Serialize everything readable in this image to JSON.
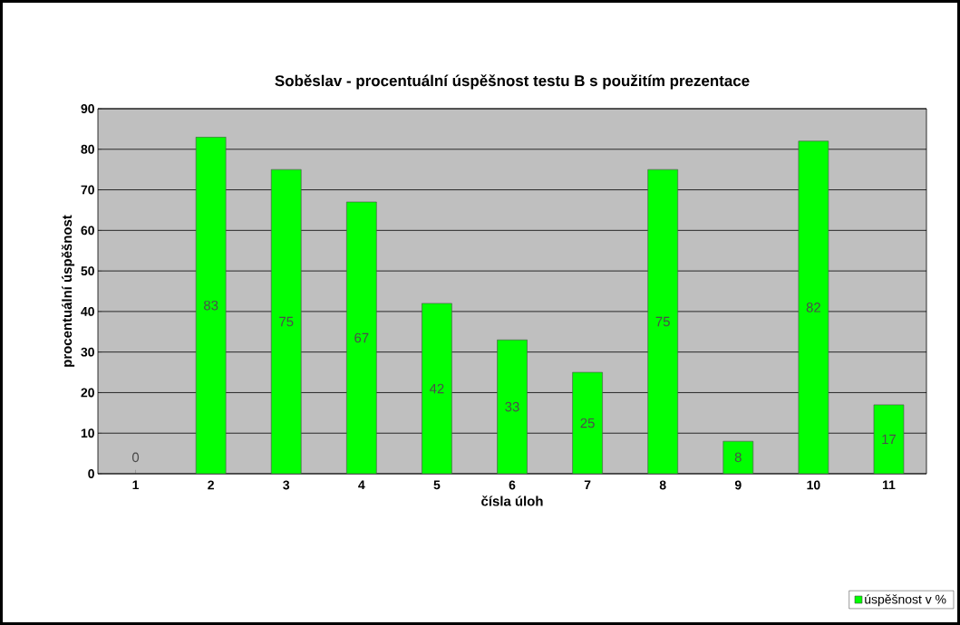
{
  "chart_data": {
    "type": "bar",
    "title": "Soběslav - procentuální úspěšnost testu B s použitím prezentace",
    "xlabel": "čísla úloh",
    "ylabel": "procentuální úspěšnost",
    "categories": [
      "1",
      "2",
      "3",
      "4",
      "5",
      "6",
      "7",
      "8",
      "9",
      "10",
      "11"
    ],
    "series": [
      {
        "name": "úspěšnost v %",
        "color": "#00ff00",
        "values": [
          0,
          83,
          75,
          67,
          42,
          33,
          25,
          75,
          8,
          82,
          17
        ]
      }
    ],
    "ylim": [
      0,
      90
    ],
    "yticks": [
      0,
      10,
      20,
      30,
      40,
      50,
      60,
      70,
      80,
      90
    ],
    "grid": "y",
    "legend": "bottom right",
    "data_labels": true
  }
}
